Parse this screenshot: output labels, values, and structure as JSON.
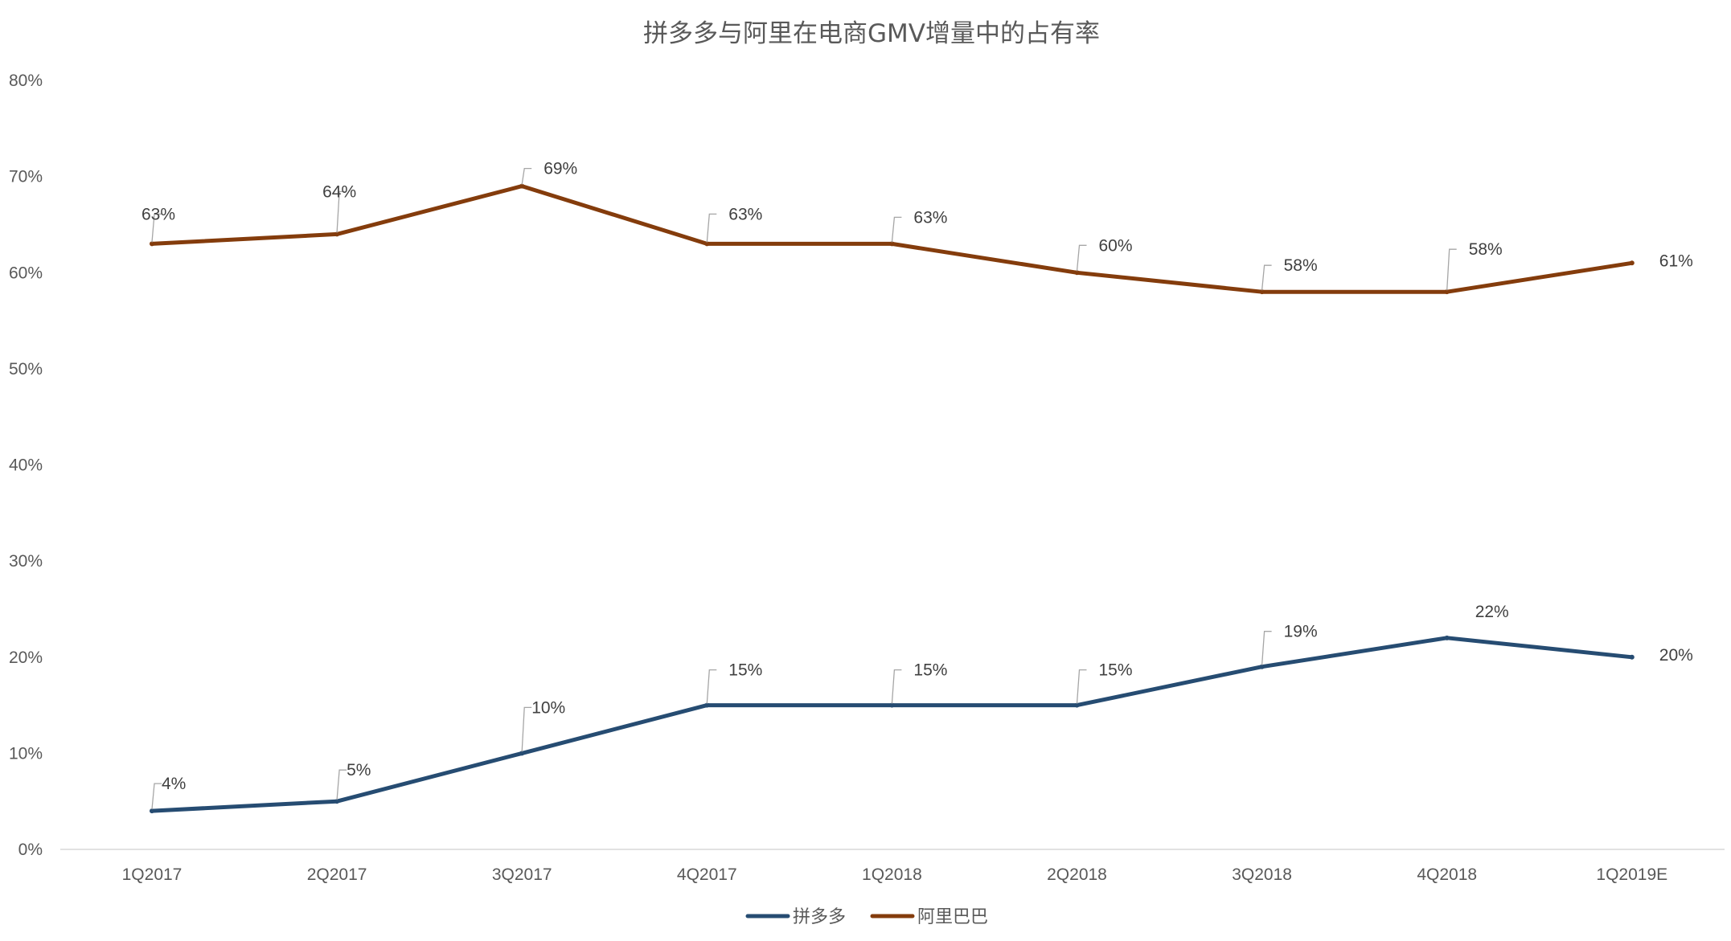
{
  "chart_data": {
    "type": "line",
    "title": "拼多多与阿里在电商GMV增量中的占有率",
    "xlabel": "",
    "ylabel": "",
    "categories": [
      "1Q2017",
      "2Q2017",
      "3Q2017",
      "4Q2017",
      "1Q2018",
      "2Q2018",
      "3Q2018",
      "4Q2018",
      "1Q2019E"
    ],
    "ylim": [
      0,
      80
    ],
    "yticks": [
      0,
      10,
      20,
      30,
      40,
      50,
      60,
      70,
      80
    ],
    "ytick_labels": [
      "0%",
      "10%",
      "20%",
      "30%",
      "40%",
      "50%",
      "60%",
      "70%",
      "80%"
    ],
    "grid": false,
    "legend_position": "bottom",
    "series": [
      {
        "name": "拼多多",
        "color": "#264c72",
        "values": [
          4,
          5,
          10,
          15,
          15,
          15,
          19,
          22,
          20
        ],
        "labels": [
          "4%",
          "5%",
          "10%",
          "15%",
          "15%",
          "15%",
          "19%",
          "22%",
          "20%"
        ]
      },
      {
        "name": "阿里巴巴",
        "color": "#843c0c",
        "values": [
          63,
          64,
          69,
          63,
          63,
          60,
          58,
          58,
          61
        ],
        "labels": [
          "63%",
          "64%",
          "69%",
          "63%",
          "63%",
          "60%",
          "58%",
          "58%",
          "61%"
        ]
      }
    ]
  },
  "colors": {
    "axis_line": "#d9d9d9",
    "leader_line": "#a6a6a6",
    "text": "#595959"
  }
}
